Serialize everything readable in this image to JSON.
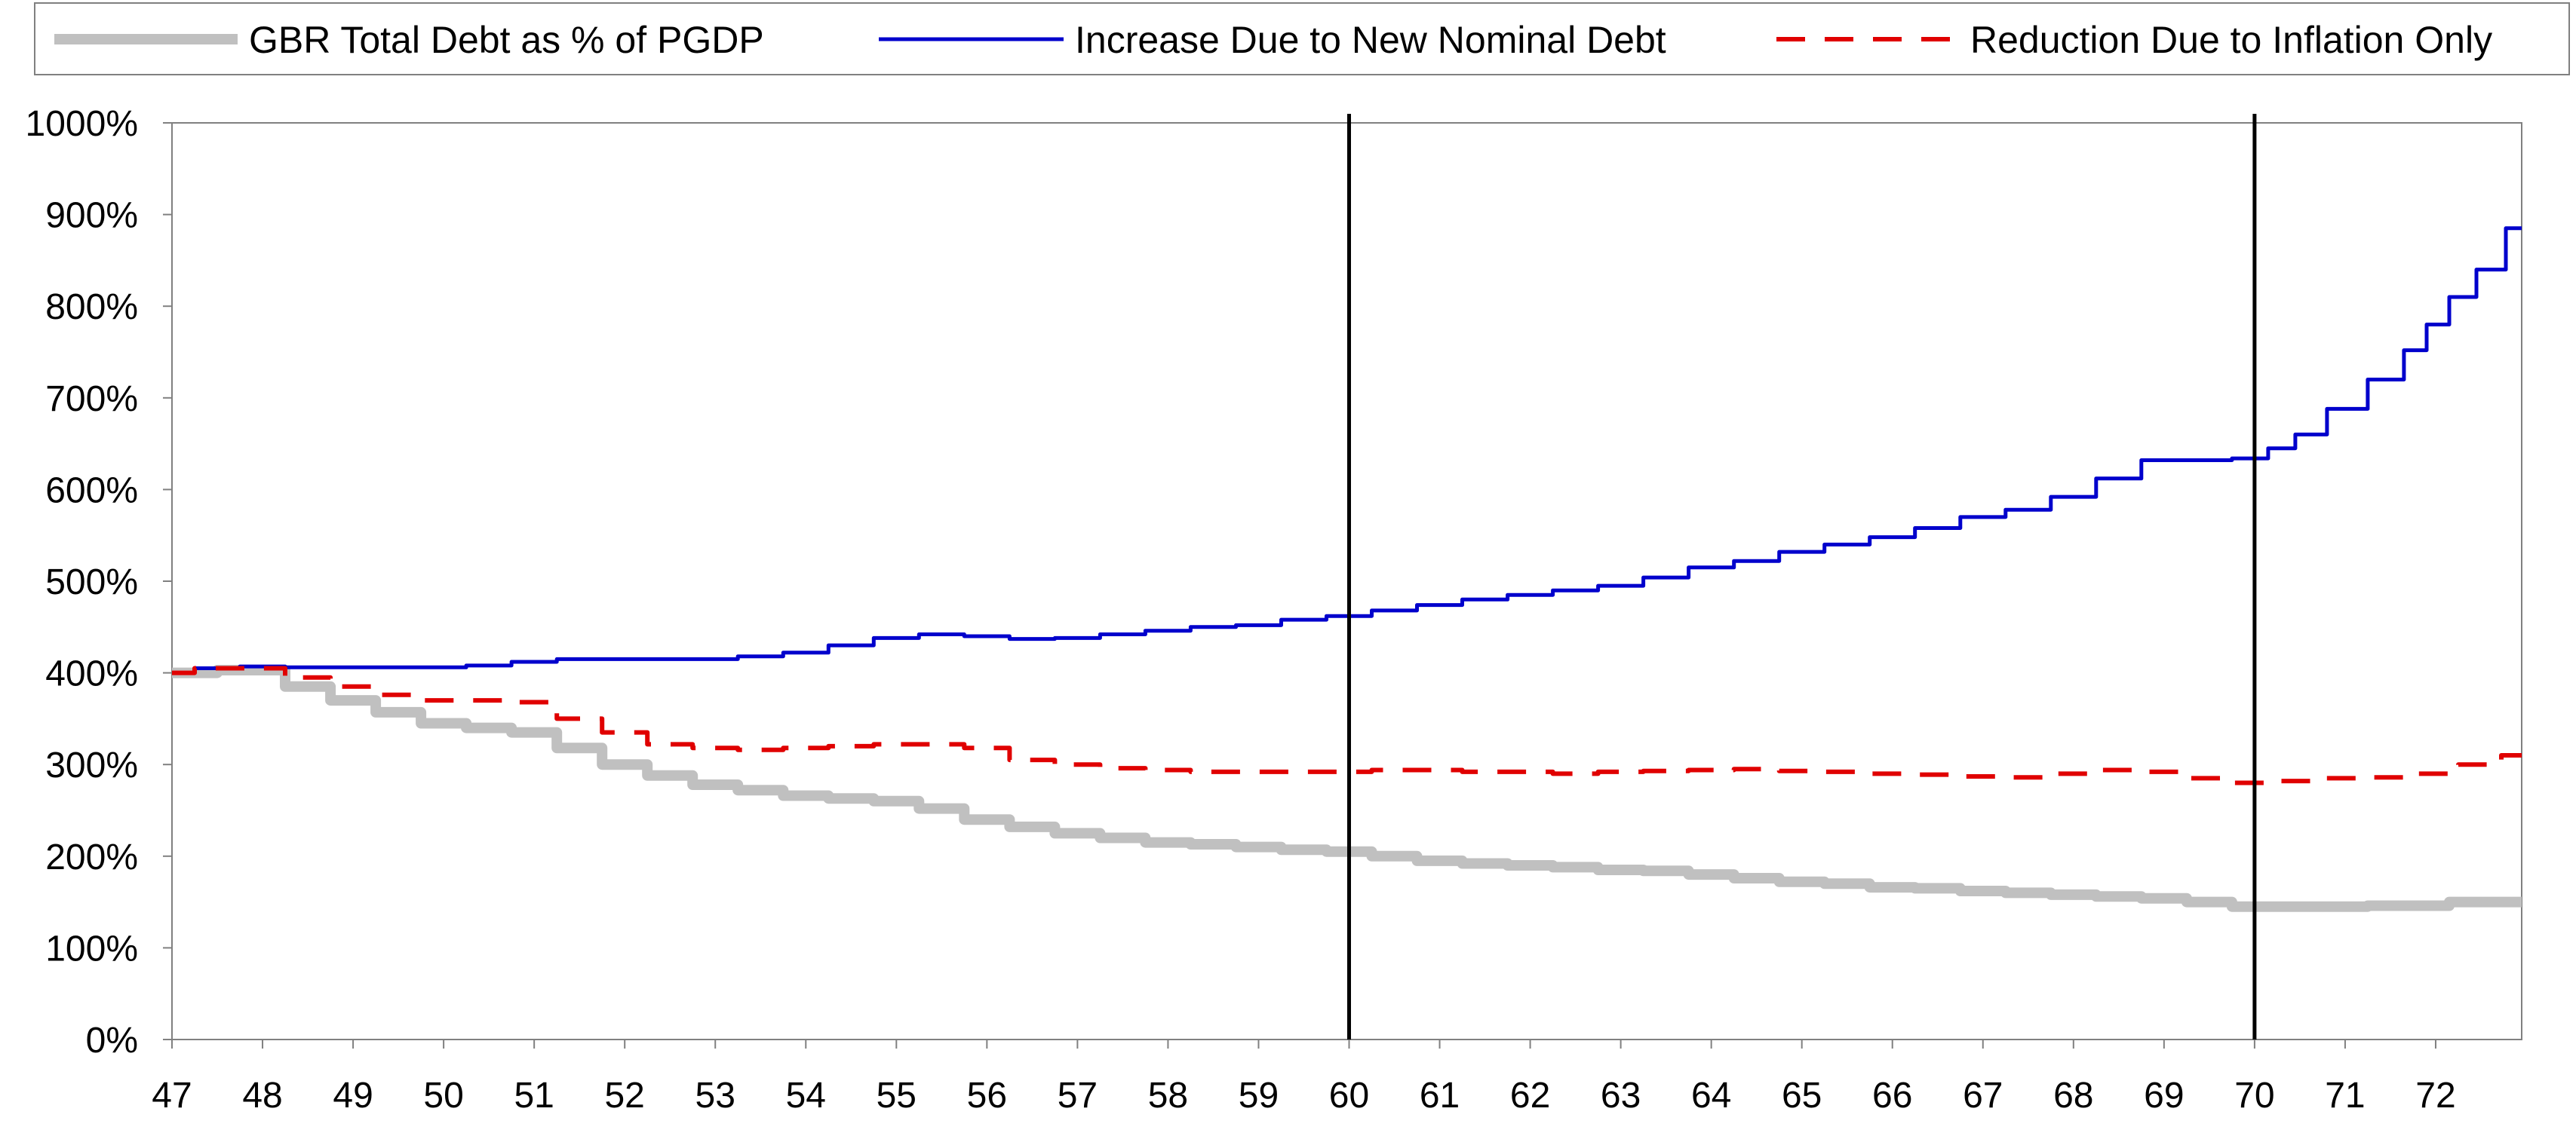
{
  "chart_data": {
    "type": "line",
    "xlabel": "",
    "ylabel": "",
    "x_tick_labels": [
      "47",
      "48",
      "49",
      "50",
      "51",
      "52",
      "53",
      "54",
      "55",
      "56",
      "57",
      "58",
      "59",
      "60",
      "61",
      "62",
      "63",
      "64",
      "65",
      "66",
      "67",
      "68",
      "69",
      "70",
      "71",
      "72"
    ],
    "y_tick_labels": [
      "0%",
      "100%",
      "200%",
      "300%",
      "400%",
      "500%",
      "600%",
      "700%",
      "800%",
      "900%",
      "1000%"
    ],
    "ylim": [
      0,
      1000
    ],
    "xlim": [
      47,
      72.95
    ],
    "grid": false,
    "legend_position": "top",
    "vertical_markers": [
      60,
      70
    ],
    "series": [
      {
        "name": "GBR Total Debt as % of PGDP",
        "color": "#c0c0c0",
        "style": "solid-thick",
        "points": [
          [
            47,
            400
          ],
          [
            48,
            403
          ],
          [
            48.5,
            385
          ],
          [
            49,
            370
          ],
          [
            49.5,
            357
          ],
          [
            50,
            345
          ],
          [
            50.5,
            340
          ],
          [
            51,
            335
          ],
          [
            51.5,
            318
          ],
          [
            52,
            300
          ],
          [
            52.5,
            288
          ],
          [
            53,
            278
          ],
          [
            53.5,
            272
          ],
          [
            54,
            266
          ],
          [
            54.5,
            263
          ],
          [
            55,
            260
          ],
          [
            55.5,
            252
          ],
          [
            56,
            240
          ],
          [
            56.5,
            232
          ],
          [
            57,
            225
          ],
          [
            57.5,
            220
          ],
          [
            58,
            215
          ],
          [
            58.5,
            213
          ],
          [
            59,
            210
          ],
          [
            59.5,
            207
          ],
          [
            60,
            205
          ],
          [
            60.5,
            200
          ],
          [
            61,
            195
          ],
          [
            61.5,
            192
          ],
          [
            62,
            190
          ],
          [
            62.5,
            188
          ],
          [
            63,
            185
          ],
          [
            63.5,
            184
          ],
          [
            64,
            180
          ],
          [
            64.5,
            176
          ],
          [
            65,
            172
          ],
          [
            65.5,
            170
          ],
          [
            66,
            166
          ],
          [
            66.5,
            165
          ],
          [
            67,
            162
          ],
          [
            67.5,
            160
          ],
          [
            68,
            158
          ],
          [
            68.5,
            156
          ],
          [
            69,
            154
          ],
          [
            69.5,
            150
          ],
          [
            70,
            145
          ],
          [
            70.5,
            145
          ],
          [
            71,
            145
          ],
          [
            71.5,
            146
          ],
          [
            72,
            146
          ],
          [
            72.3,
            150
          ],
          [
            72.95,
            150
          ]
        ]
      },
      {
        "name": "Increase Due to New Nominal Debt",
        "color": "#0000cc",
        "style": "solid",
        "points": [
          [
            47,
            400
          ],
          [
            47.5,
            405
          ],
          [
            48,
            407
          ],
          [
            48.5,
            406
          ],
          [
            49,
            406
          ],
          [
            49.5,
            406
          ],
          [
            50,
            406
          ],
          [
            50.5,
            408
          ],
          [
            51,
            412
          ],
          [
            51.5,
            415
          ],
          [
            52,
            415
          ],
          [
            52.5,
            415
          ],
          [
            53,
            415
          ],
          [
            53.5,
            418
          ],
          [
            54,
            422
          ],
          [
            54.5,
            430
          ],
          [
            55,
            438
          ],
          [
            55.5,
            442
          ],
          [
            56,
            440
          ],
          [
            56.5,
            437
          ],
          [
            57,
            438
          ],
          [
            57.5,
            442
          ],
          [
            58,
            446
          ],
          [
            58.5,
            450
          ],
          [
            59,
            452
          ],
          [
            59.5,
            458
          ],
          [
            60,
            462
          ],
          [
            60.5,
            468
          ],
          [
            61,
            474
          ],
          [
            61.5,
            480
          ],
          [
            62,
            485
          ],
          [
            62.5,
            490
          ],
          [
            63,
            495
          ],
          [
            63.5,
            504
          ],
          [
            64,
            515
          ],
          [
            64.5,
            522
          ],
          [
            65,
            532
          ],
          [
            65.5,
            540
          ],
          [
            66,
            548
          ],
          [
            66.5,
            558
          ],
          [
            67,
            570
          ],
          [
            67.5,
            578
          ],
          [
            68,
            592
          ],
          [
            68.5,
            612
          ],
          [
            69,
            632
          ],
          [
            69.5,
            632
          ],
          [
            70,
            634
          ],
          [
            70.3,
            645
          ],
          [
            70.6,
            660
          ],
          [
            71,
            688
          ],
          [
            71.5,
            720
          ],
          [
            71.8,
            752
          ],
          [
            72,
            780
          ],
          [
            72.3,
            810
          ],
          [
            72.6,
            840
          ],
          [
            72.95,
            885
          ]
        ]
      },
      {
        "name": "Reduction Due to Inflation Only",
        "color": "#e00000",
        "style": "dashed",
        "points": [
          [
            47,
            400
          ],
          [
            47.5,
            405
          ],
          [
            48,
            405
          ],
          [
            48.5,
            395
          ],
          [
            49,
            385
          ],
          [
            49.5,
            376
          ],
          [
            50,
            370
          ],
          [
            50.5,
            370
          ],
          [
            51,
            368
          ],
          [
            51.5,
            350
          ],
          [
            52,
            335
          ],
          [
            52.5,
            322
          ],
          [
            53,
            318
          ],
          [
            53.5,
            316
          ],
          [
            54,
            318
          ],
          [
            54.5,
            320
          ],
          [
            55,
            322
          ],
          [
            55.5,
            322
          ],
          [
            56,
            318
          ],
          [
            56.5,
            305
          ],
          [
            57,
            300
          ],
          [
            57.5,
            296
          ],
          [
            58,
            294
          ],
          [
            58.5,
            292
          ],
          [
            59,
            292
          ],
          [
            59.5,
            292
          ],
          [
            60,
            292
          ],
          [
            60.5,
            294
          ],
          [
            61,
            294
          ],
          [
            61.5,
            292
          ],
          [
            62,
            292
          ],
          [
            62.5,
            290
          ],
          [
            63,
            292
          ],
          [
            63.5,
            293
          ],
          [
            64,
            294
          ],
          [
            64.5,
            295
          ],
          [
            65,
            293
          ],
          [
            65.5,
            292
          ],
          [
            66,
            290
          ],
          [
            66.5,
            289
          ],
          [
            67,
            287
          ],
          [
            67.5,
            286
          ],
          [
            68,
            290
          ],
          [
            68.5,
            294
          ],
          [
            69,
            292
          ],
          [
            69.5,
            285
          ],
          [
            70,
            280
          ],
          [
            70.5,
            282
          ],
          [
            71,
            285
          ],
          [
            71.5,
            286
          ],
          [
            72,
            290
          ],
          [
            72.5,
            300
          ],
          [
            72.95,
            310
          ]
        ]
      }
    ]
  }
}
